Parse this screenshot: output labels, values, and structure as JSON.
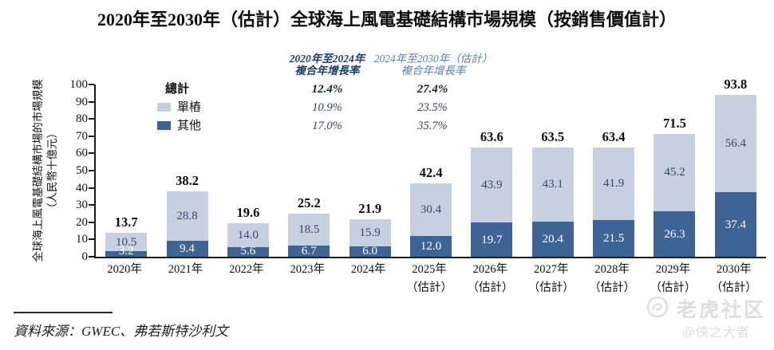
{
  "title": "2020年至2030年（估計）全球海上風電基礎結構市場規模（按銷售價值計）",
  "colors": {
    "monopile": "#c6d0e0",
    "other": "#3e6496",
    "cagr_header_primary": "#1c3e6e",
    "cagr_header_secondary": "#5b7fae",
    "watermark": "#dedede"
  },
  "cagr": {
    "columns": [
      {
        "line1": "2020年至2024年",
        "line2": "複合年增長率",
        "emphasis": true
      },
      {
        "line1": "2024年至2030年（估計）",
        "line2": "複合年增長率",
        "emphasis": false
      }
    ],
    "rows": [
      {
        "label": "總計",
        "swatch": null,
        "values": [
          "12.4%",
          "27.4%"
        ],
        "emphasis": true
      },
      {
        "label": "單樁",
        "swatch": "monopile",
        "values": [
          "10.9%",
          "23.5%"
        ],
        "emphasis": false
      },
      {
        "label": "其他",
        "swatch": "other",
        "values": [
          "17.0%",
          "35.7%"
        ],
        "emphasis": false
      }
    ]
  },
  "chart_data": {
    "type": "bar",
    "stacked": true,
    "title": "2020年至2030年（估計）全球海上風電基礎結構市場規模（按銷售價值計）",
    "ylabel": "全球海上風電基礎結構市場的市場規模",
    "ylabel_unit": "（人民幣十億元）",
    "ylim": [
      0,
      100
    ],
    "ytick_step": 10,
    "grid": false,
    "legend_position": "top-left",
    "categories": [
      "2020年",
      "2021年",
      "2022年",
      "2023年",
      "2024年",
      "2025年",
      "2026年",
      "2027年",
      "2028年",
      "2029年",
      "2030年"
    ],
    "estimate_suffix": "（估計）",
    "estimate_from_index": 5,
    "series": [
      {
        "name": "其他",
        "color_key": "other",
        "values": [
          3.2,
          9.4,
          5.6,
          6.7,
          6.0,
          12.0,
          19.7,
          20.4,
          21.5,
          26.3,
          37.4
        ]
      },
      {
        "name": "單樁",
        "color_key": "monopile",
        "values": [
          10.5,
          28.8,
          14.0,
          18.5,
          15.9,
          30.4,
          43.9,
          43.1,
          41.9,
          45.2,
          56.4
        ]
      }
    ],
    "totals": [
      13.7,
      38.2,
      19.6,
      25.2,
      21.9,
      42.4,
      63.6,
      63.5,
      63.4,
      71.5,
      93.8
    ]
  },
  "source": "資料來源：GWEC、弗若斯特沙利文",
  "watermark": {
    "brand": "老虎社区",
    "handle": "@侠之大者."
  }
}
